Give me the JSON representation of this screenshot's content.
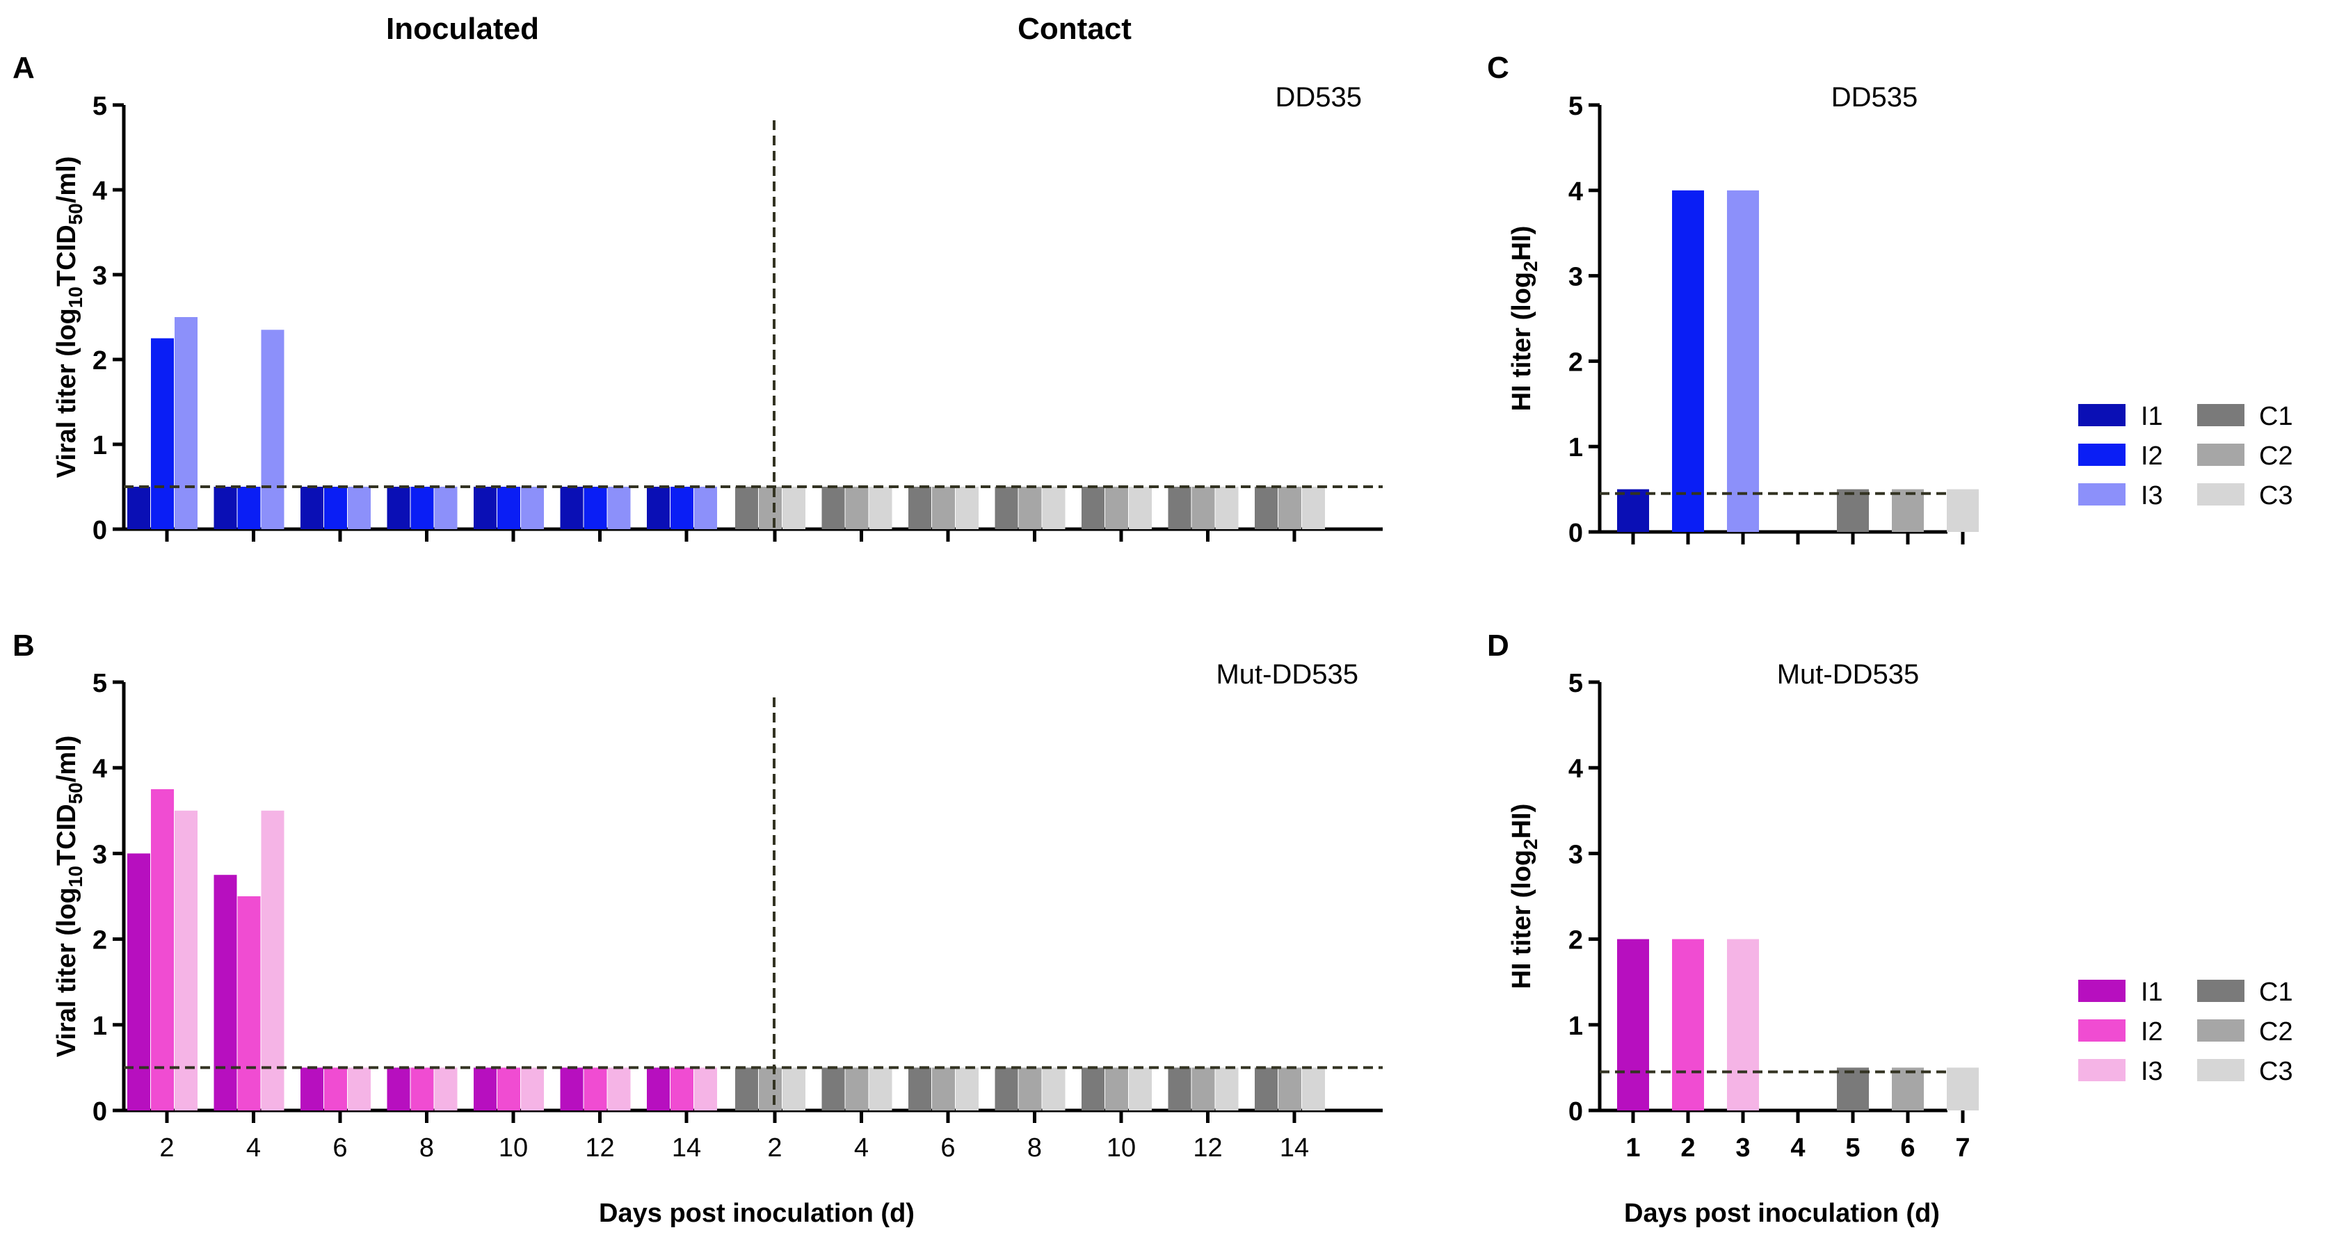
{
  "figure": {
    "header_left": "Inoculated",
    "header_right": "Contact",
    "x_label": "Days post inoculation (d)"
  },
  "colors": {
    "dd": [
      "#0a0fb5",
      "#0a1ef5",
      "#8c90fa"
    ],
    "mut": [
      "#b70fbf",
      "#f04cd2",
      "#f5b4e6"
    ],
    "contact": [
      "#7a7a7a",
      "#a6a6a6",
      "#d6d6d6"
    ],
    "cutoff_line": "#333322"
  },
  "chart_data": [
    {
      "id": "A",
      "panel_label": "A",
      "type": "bar",
      "virus": "DD535",
      "ylabel_parts": [
        "Viral titer (log",
        "10",
        "TCID",
        "50",
        "/ml)"
      ],
      "ylim": [
        0,
        5
      ],
      "yticks": [
        "0",
        "1",
        "2",
        "3",
        "4",
        "5"
      ],
      "detection_limit": 0.5,
      "groups": [
        {
          "name": "Inoculated",
          "x": [
            "2",
            "4",
            "6",
            "8",
            "10",
            "12",
            "14"
          ],
          "series": [
            {
              "name": "I1",
              "values": [
                0.5,
                0.5,
                0.5,
                0.5,
                0.5,
                0.5,
                0.5
              ]
            },
            {
              "name": "I2",
              "values": [
                2.25,
                0.5,
                0.5,
                0.5,
                0.5,
                0.5,
                0.5
              ]
            },
            {
              "name": "I3",
              "values": [
                2.5,
                2.35,
                0.5,
                0.5,
                0.5,
                0.5,
                0.5
              ]
            }
          ]
        },
        {
          "name": "Contact",
          "x": [
            "2",
            "4",
            "6",
            "8",
            "10",
            "12",
            "14"
          ],
          "series": [
            {
              "name": "C1",
              "values": [
                0.5,
                0.5,
                0.5,
                0.5,
                0.5,
                0.5,
                0.5
              ]
            },
            {
              "name": "C2",
              "values": [
                0.5,
                0.5,
                0.5,
                0.5,
                0.5,
                0.5,
                0.5
              ]
            },
            {
              "name": "C3",
              "values": [
                0.5,
                0.5,
                0.5,
                0.5,
                0.5,
                0.5,
                0.5
              ]
            }
          ]
        }
      ]
    },
    {
      "id": "B",
      "panel_label": "B",
      "type": "bar",
      "virus": "Mut-DD535",
      "ylabel_parts": [
        "Viral titer (log",
        "10",
        "TCID",
        "50",
        "/ml)"
      ],
      "ylim": [
        0,
        5
      ],
      "yticks": [
        "0",
        "1",
        "2",
        "3",
        "4",
        "5"
      ],
      "detection_limit": 0.5,
      "groups": [
        {
          "name": "Inoculated",
          "x": [
            "2",
            "4",
            "6",
            "8",
            "10",
            "12",
            "14"
          ],
          "series": [
            {
              "name": "I1",
              "values": [
                3.0,
                2.75,
                0.5,
                0.5,
                0.5,
                0.5,
                0.5
              ]
            },
            {
              "name": "I2",
              "values": [
                3.75,
                2.5,
                0.5,
                0.5,
                0.5,
                0.5,
                0.5
              ]
            },
            {
              "name": "I3",
              "values": [
                3.5,
                3.5,
                0.5,
                0.5,
                0.5,
                0.5,
                0.5
              ]
            }
          ]
        },
        {
          "name": "Contact",
          "x": [
            "2",
            "4",
            "6",
            "8",
            "10",
            "12",
            "14"
          ],
          "series": [
            {
              "name": "C1",
              "values": [
                0.5,
                0.5,
                0.5,
                0.5,
                0.5,
                0.5,
                0.5
              ]
            },
            {
              "name": "C2",
              "values": [
                0.5,
                0.5,
                0.5,
                0.5,
                0.5,
                0.5,
                0.5
              ]
            },
            {
              "name": "C3",
              "values": [
                0.5,
                0.5,
                0.5,
                0.5,
                0.5,
                0.5,
                0.5
              ]
            }
          ]
        }
      ]
    },
    {
      "id": "C",
      "panel_label": "C",
      "type": "bar",
      "virus": "DD535",
      "ylabel_parts": [
        "HI titer (log",
        "2",
        "HI)"
      ],
      "ylim": [
        0,
        5
      ],
      "yticks": [
        "0",
        "1",
        "2",
        "3",
        "4",
        "5"
      ],
      "detection_limit": 0.45,
      "x": [
        "",
        "",
        "",
        "",
        "",
        "",
        ""
      ],
      "series": [
        {
          "name": "I1",
          "value": 0.5
        },
        {
          "name": "I2",
          "value": 4.0
        },
        {
          "name": "I3",
          "value": 4.0
        },
        {
          "name": "",
          "value": 0
        },
        {
          "name": "C1",
          "value": 0.5
        },
        {
          "name": "C2",
          "value": 0.5
        },
        {
          "name": "C3",
          "value": 0.5
        }
      ]
    },
    {
      "id": "D",
      "panel_label": "D",
      "type": "bar",
      "virus": "Mut-DD535",
      "ylabel_parts": [
        "HI titer (log",
        "2",
        "HI)"
      ],
      "ylim": [
        0,
        5
      ],
      "yticks": [
        "0",
        "1",
        "2",
        "3",
        "4",
        "5"
      ],
      "detection_limit": 0.45,
      "x": [
        "1",
        "2",
        "3",
        "4",
        "5",
        "6",
        "7"
      ],
      "series": [
        {
          "name": "I1",
          "value": 2.0
        },
        {
          "name": "I2",
          "value": 2.0
        },
        {
          "name": "I3",
          "value": 2.0
        },
        {
          "name": "",
          "value": 0
        },
        {
          "name": "C1",
          "value": 0.5
        },
        {
          "name": "C2",
          "value": 0.5
        },
        {
          "name": "C3",
          "value": 0.5
        }
      ]
    }
  ],
  "legends": [
    {
      "id": "legend-top",
      "inoculated": [
        "I1",
        "I2",
        "I3"
      ],
      "contact": [
        "C1",
        "C2",
        "C3"
      ]
    },
    {
      "id": "legend-bottom",
      "inoculated": [
        "I1",
        "I2",
        "I3"
      ],
      "contact": [
        "C1",
        "C2",
        "C3"
      ]
    }
  ]
}
